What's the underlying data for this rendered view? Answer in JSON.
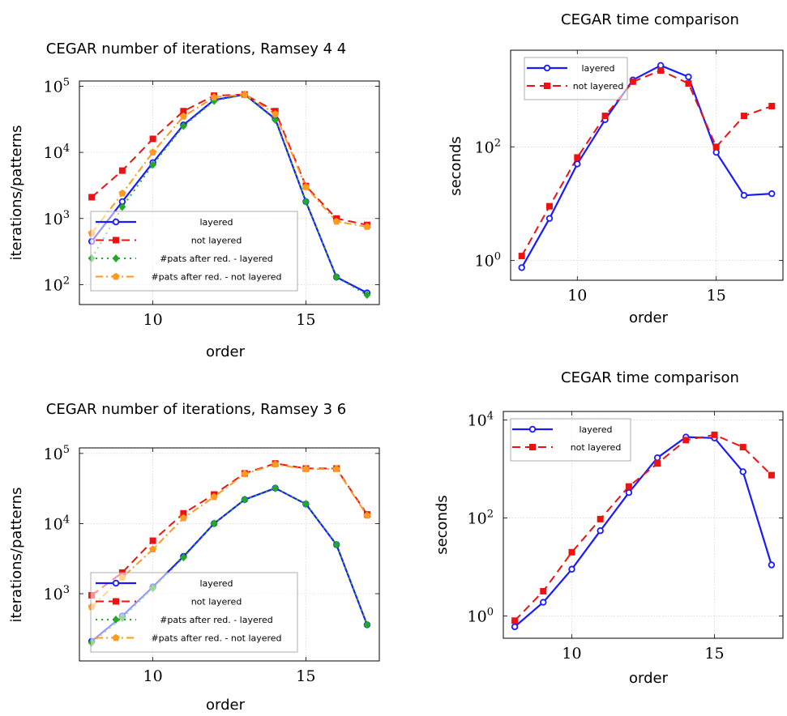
{
  "chart_data": [
    {
      "type": "line",
      "title": "CEGAR number of iterations, Ramsey 4 4",
      "xlabel": "order",
      "ylabel": "iterations/patterns",
      "yscale": "log",
      "xlim": [
        7.6,
        17.4
      ],
      "ylim": [
        50,
        120000
      ],
      "x_ticks": [
        {
          "v": 10,
          "label": "10"
        },
        {
          "v": 15,
          "label": "15"
        }
      ],
      "y_ticks": [
        {
          "v": 100,
          "label": "10",
          "exp": "2"
        },
        {
          "v": 1000,
          "label": "10",
          "exp": "3"
        },
        {
          "v": 10000,
          "label": "10",
          "exp": "4"
        },
        {
          "v": 100000,
          "label": "10",
          "exp": "5"
        }
      ],
      "grid": true,
      "legend_position": "bottom-left",
      "series": [
        {
          "name": "layered",
          "color": "#1a1aff",
          "style": "solid",
          "marker": "circle",
          "x": [
            8,
            9,
            10,
            11,
            12,
            13,
            14,
            15,
            16,
            17
          ],
          "y": [
            450,
            1800,
            7000,
            26000,
            62000,
            75000,
            32000,
            1800,
            130,
            75
          ]
        },
        {
          "name": "not layered",
          "color": "#ee1111",
          "style": "dashed",
          "marker": "square",
          "x": [
            8,
            9,
            10,
            11,
            12,
            13,
            14,
            15,
            16,
            17
          ],
          "y": [
            2100,
            5300,
            16000,
            42000,
            72000,
            75000,
            42000,
            3100,
            1000,
            800
          ]
        },
        {
          "name": "#pats after red. - layered",
          "color": "#22aa22",
          "style": "dotted",
          "marker": "diamond",
          "x": [
            8,
            9,
            10,
            11,
            12,
            13,
            14,
            15,
            16,
            17
          ],
          "y": [
            250,
            1500,
            6500,
            25000,
            60000,
            75000,
            31000,
            1800,
            130,
            70
          ]
        },
        {
          "name": "#pats after red. - not layered",
          "color": "#ff9922",
          "style": "dashdot",
          "marker": "pentagon",
          "x": [
            8,
            9,
            10,
            11,
            12,
            13,
            14,
            15,
            16,
            17
          ],
          "y": [
            600,
            2400,
            10000,
            35000,
            68000,
            75000,
            38000,
            3000,
            900,
            750
          ]
        }
      ]
    },
    {
      "type": "line",
      "title": "CEGAR time comparison",
      "xlabel": "order",
      "ylabel": "seconds",
      "yscale": "log",
      "xlim": [
        7.6,
        17.4
      ],
      "ylim": [
        0.45,
        5000
      ],
      "x_ticks": [
        {
          "v": 10,
          "label": "10"
        },
        {
          "v": 15,
          "label": "15"
        }
      ],
      "y_ticks": [
        {
          "v": 1,
          "label": "10",
          "exp": "0"
        },
        {
          "v": 100,
          "label": "10",
          "exp": "2"
        }
      ],
      "grid": true,
      "legend_position": "top-left",
      "series": [
        {
          "name": "layered",
          "color": "#1a1aff",
          "style": "solid",
          "marker": "circle",
          "x": [
            8,
            9,
            10,
            11,
            12,
            13,
            14,
            15,
            16,
            17
          ],
          "y": [
            0.75,
            5.5,
            50,
            300,
            1500,
            2700,
            1700,
            80,
            14,
            15
          ]
        },
        {
          "name": "not layered",
          "color": "#ee1111",
          "style": "dashed",
          "marker": "square",
          "x": [
            8,
            9,
            10,
            11,
            12,
            13,
            14,
            15,
            16,
            17
          ],
          "y": [
            1.2,
            9,
            65,
            350,
            1400,
            2200,
            1300,
            100,
            350,
            520
          ]
        }
      ]
    },
    {
      "type": "line",
      "title": "CEGAR number of iterations, Ramsey 3 6",
      "xlabel": "order",
      "ylabel": "iterations/patterns",
      "yscale": "log",
      "xlim": [
        7.6,
        17.4
      ],
      "ylim": [
        110,
        120000
      ],
      "x_ticks": [
        {
          "v": 10,
          "label": "10"
        },
        {
          "v": 15,
          "label": "15"
        }
      ],
      "y_ticks": [
        {
          "v": 1000,
          "label": "10",
          "exp": "3"
        },
        {
          "v": 10000,
          "label": "10",
          "exp": "4"
        },
        {
          "v": 100000,
          "label": "10",
          "exp": "5"
        }
      ],
      "grid": true,
      "legend_position": "bottom-left",
      "series": [
        {
          "name": "layered",
          "color": "#1a1aff",
          "style": "solid",
          "marker": "circle",
          "x": [
            8,
            9,
            10,
            11,
            12,
            13,
            14,
            15,
            16,
            17
          ],
          "y": [
            210,
            480,
            1250,
            3400,
            10000,
            22000,
            32000,
            19000,
            5000,
            360
          ]
        },
        {
          "name": "not layered",
          "color": "#ee1111",
          "style": "dashed",
          "marker": "square",
          "x": [
            8,
            9,
            10,
            11,
            12,
            13,
            14,
            15,
            16,
            17
          ],
          "y": [
            950,
            2000,
            5700,
            14000,
            26000,
            52000,
            72000,
            61000,
            61000,
            13500
          ]
        },
        {
          "name": "#pats after red. - layered",
          "color": "#22aa22",
          "style": "dotted",
          "marker": "diamond",
          "x": [
            8,
            9,
            10,
            11,
            12,
            13,
            14,
            15,
            16,
            17
          ],
          "y": [
            200,
            450,
            1200,
            3300,
            10000,
            22000,
            32000,
            19000,
            5000,
            360
          ]
        },
        {
          "name": "#pats after red. - not layered",
          "color": "#ff9922",
          "style": "dashdot",
          "marker": "pentagon",
          "x": [
            8,
            9,
            10,
            11,
            12,
            13,
            14,
            15,
            16,
            17
          ],
          "y": [
            650,
            1700,
            4300,
            12000,
            24000,
            51000,
            70000,
            60000,
            60000,
            13000
          ]
        }
      ]
    },
    {
      "type": "line",
      "title": "CEGAR time comparison",
      "xlabel": "order",
      "ylabel": "seconds",
      "yscale": "log",
      "xlim": [
        7.6,
        17.4
      ],
      "ylim": [
        0.35,
        15000
      ],
      "x_ticks": [
        {
          "v": 10,
          "label": "10"
        },
        {
          "v": 15,
          "label": "15"
        }
      ],
      "y_ticks": [
        {
          "v": 1,
          "label": "10",
          "exp": "0"
        },
        {
          "v": 100,
          "label": "10",
          "exp": "2"
        },
        {
          "v": 10000,
          "label": "10",
          "exp": "4"
        }
      ],
      "grid": true,
      "legend_position": "top-left",
      "series": [
        {
          "name": "layered",
          "color": "#1a1aff",
          "style": "solid",
          "marker": "circle",
          "x": [
            8,
            9,
            10,
            11,
            12,
            13,
            14,
            15,
            16,
            17
          ],
          "y": [
            0.6,
            1.9,
            9,
            55,
            330,
            1700,
            4500,
            4300,
            880,
            11
          ]
        },
        {
          "name": "not layered",
          "color": "#ee1111",
          "style": "dashed",
          "marker": "square",
          "x": [
            8,
            9,
            10,
            11,
            12,
            13,
            14,
            15,
            16,
            17
          ],
          "y": [
            0.8,
            3.2,
            20,
            95,
            440,
            1300,
            3900,
            5000,
            2800,
            750
          ]
        }
      ]
    }
  ]
}
